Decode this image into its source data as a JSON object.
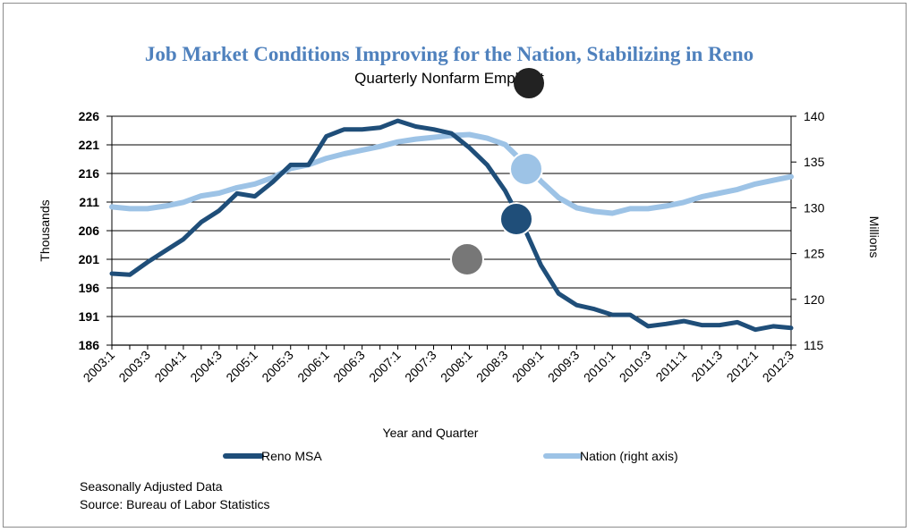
{
  "chart_data": {
    "type": "line",
    "title": "Job  Market Conditions Improving for the Nation, Stabilizing in Reno",
    "subtitle": "Quarterly Nonfarm Empl ent",
    "xlabel": "Year and Quarter",
    "ylabel_left": "Thousands",
    "ylabel_right": "Millions",
    "ylim_left": [
      186,
      226
    ],
    "ylim_right": [
      115,
      140
    ],
    "yticks_left": [
      "226",
      "221",
      "216",
      "211",
      "206",
      "201",
      "196",
      "191",
      "186"
    ],
    "yticks_right": [
      "140",
      "135",
      "130",
      "125",
      "120",
      "115"
    ],
    "grid": true,
    "legend_placement": "bottom",
    "x": [
      "2003:1",
      "2003:2",
      "2003:3",
      "2003:4",
      "2004:1",
      "2004:2",
      "2004:3",
      "2004:4",
      "2005:1",
      "2005:2",
      "2005:3",
      "2005:4",
      "2006:1",
      "2006:2",
      "2006:3",
      "2006:4",
      "2007:1",
      "2007:2",
      "2007:3",
      "2007:4",
      "2008:1",
      "2008:2",
      "2008:3",
      "2008:4",
      "2009:1",
      "2009:2",
      "2009:3",
      "2009:4",
      "2010:1",
      "2010:2",
      "2010:3",
      "2010:4",
      "2011:1",
      "2011:2",
      "2011:3",
      "2011:4",
      "2012:1",
      "2012:2",
      "2012:3"
    ],
    "x_tick_labels": [
      "2003:1",
      "2003:3",
      "2004:1",
      "2004:3",
      "2005:1",
      "2005:3",
      "2006:1",
      "2006:3",
      "2007:1",
      "2007:3",
      "2008:1",
      "2008:3",
      "2009:1",
      "2009:3",
      "2010:1",
      "2010:3",
      "2011:1",
      "2011:3",
      "2012:1",
      "2012:3"
    ],
    "series": [
      {
        "name": "Reno MSA",
        "axis": "left",
        "color": "#1f4e79",
        "values": [
          198.5,
          198.3,
          200.5,
          202.5,
          204.5,
          207.5,
          209.5,
          212.5,
          212.0,
          214.5,
          217.5,
          217.5,
          222.5,
          223.7,
          223.7,
          224.0,
          225.2,
          224.2,
          223.7,
          223.0,
          220.5,
          217.5,
          213.0,
          207.0,
          200.0,
          195.0,
          193.0,
          192.3,
          191.3,
          191.3,
          189.3,
          189.7,
          190.2,
          189.5,
          189.5,
          190.0,
          188.7,
          189.3,
          189.0
        ]
      },
      {
        "name": "Nation (right axis)",
        "axis": "right",
        "color": "#9dc3e6",
        "values": [
          130.1,
          129.9,
          129.9,
          130.2,
          130.6,
          131.3,
          131.6,
          132.2,
          132.6,
          133.3,
          134.3,
          134.7,
          135.4,
          135.9,
          136.3,
          136.7,
          137.2,
          137.5,
          137.7,
          137.9,
          138.0,
          137.6,
          136.9,
          135.0,
          132.9,
          131.1,
          130.0,
          129.6,
          129.4,
          129.9,
          129.9,
          130.2,
          130.6,
          131.2,
          131.6,
          132.0,
          132.6,
          133.0,
          133.4
        ]
      }
    ],
    "notes": [
      "Seasonally Adjusted Data",
      "Source: Bureau of Labor  Statistics"
    ]
  }
}
